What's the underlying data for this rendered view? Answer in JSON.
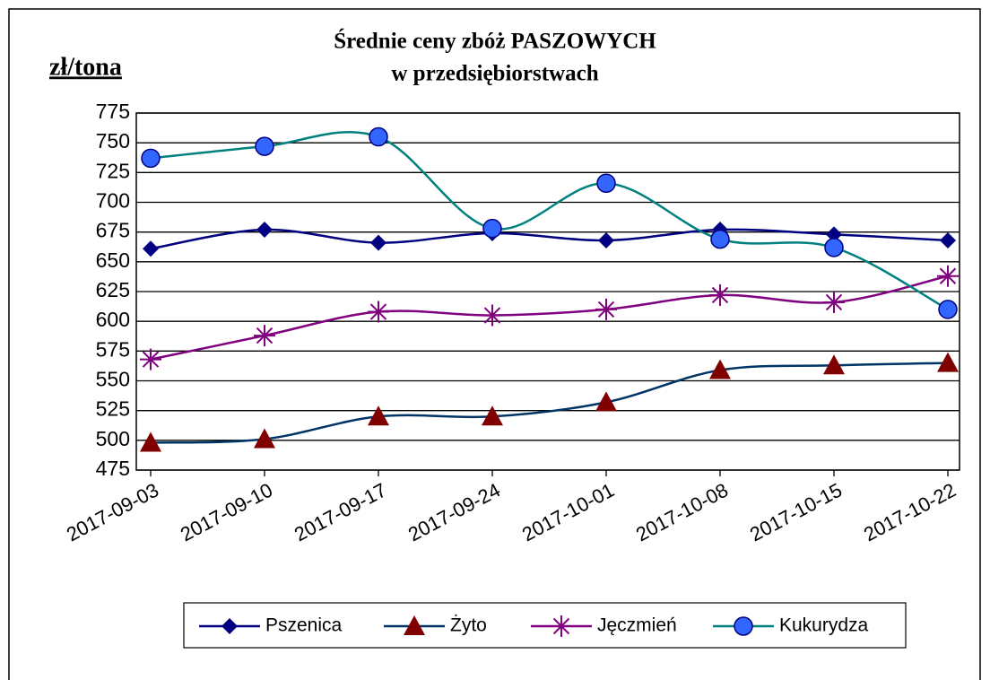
{
  "chart_data": {
    "type": "line",
    "title": [
      "Średnie ceny zbóż PASZOWYCH",
      "w przedsiębiorstwach"
    ],
    "y_label": "zł/tona",
    "categories": [
      "2017-09-03",
      "2017-09-10",
      "2017-09-17",
      "2017-09-24",
      "2017-10-01",
      "2017-10-08",
      "2017-10-15",
      "2017-10-22"
    ],
    "series": [
      {
        "name": "Pszenica",
        "color": "#000080",
        "marker": "diamond",
        "marker_color": "#000080",
        "values": [
          661,
          677,
          666,
          674,
          668,
          677,
          673,
          668
        ]
      },
      {
        "name": "Żyto",
        "color": "#003366",
        "marker": "triangle",
        "marker_color": "#800000",
        "values": [
          498,
          501,
          520,
          520,
          532,
          559,
          563,
          565
        ]
      },
      {
        "name": "Jęczmień",
        "color": "#800080",
        "marker": "star",
        "marker_color": "#800080",
        "values": [
          568,
          588,
          608,
          605,
          610,
          622,
          616,
          638
        ]
      },
      {
        "name": "Kukurydza",
        "color": "#008080",
        "marker": "circle",
        "marker_color": "#3366ff",
        "values": [
          737,
          747,
          755,
          678,
          716,
          669,
          662,
          610
        ]
      }
    ],
    "ylim": [
      475,
      775
    ],
    "yticks": [
      475,
      500,
      525,
      550,
      575,
      600,
      625,
      650,
      675,
      700,
      725,
      750,
      775
    ],
    "grid": true,
    "smooth": true,
    "legend": "bottom"
  }
}
